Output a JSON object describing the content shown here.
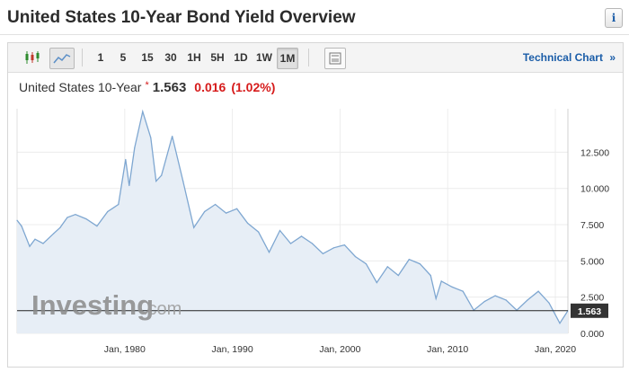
{
  "page": {
    "title": "United States 10-Year Bond Yield Overview",
    "info_glyph": "i"
  },
  "toolbar": {
    "candles_icon": "candlestick-chart-icon",
    "line_icon": "line-chart-icon",
    "timeframes": [
      "1",
      "5",
      "15",
      "30",
      "1H",
      "5H",
      "1D",
      "1W",
      "1M"
    ],
    "active_timeframe": "1M",
    "settings_icon": "chart-settings-icon",
    "technical_chart_label": "Technical Chart",
    "technical_chart_arrow": "»"
  },
  "quote": {
    "name": "United States 10-Year",
    "marker": "*",
    "last": "1.563",
    "change": "0.016",
    "change_pct": "(1.02%)"
  },
  "colors": {
    "line": "#7fa7d1",
    "area": "#e7eef6",
    "negative": "#d61b1b",
    "link": "#1b5da8",
    "price_badge": "#333333"
  },
  "watermark": {
    "brand": "Investing",
    "suffix": ".com"
  },
  "chart_data": {
    "type": "area",
    "title": "",
    "xlabel": "",
    "ylabel": "",
    "y_ticks": [
      "12.500",
      "10.000",
      "7.500",
      "5.000",
      "2.500",
      "0.000"
    ],
    "x_ticks": [
      "Jan, 1980",
      "Jan, 1990",
      "Jan, 2000",
      "Jan, 2010",
      "Jan, 2020"
    ],
    "ylim": [
      0,
      15.5
    ],
    "xlim": [
      "1970-01",
      "2021-03"
    ],
    "current_value": "1.563",
    "grid": true,
    "series": [
      {
        "x": [
          "1970-01",
          "1970-06",
          "1971-03",
          "1971-09",
          "1972-06",
          "1973-06",
          "1974-01",
          "1974-09",
          "1975-06",
          "1976-06",
          "1977-06",
          "1978-06",
          "1979-06",
          "1980-02",
          "1980-06",
          "1980-12",
          "1981-09",
          "1982-06",
          "1982-12",
          "1983-06",
          "1984-06",
          "1985-06",
          "1986-06",
          "1987-06",
          "1988-06",
          "1989-06",
          "1990-06",
          "1991-06",
          "1992-06",
          "1993-06",
          "1994-06",
          "1995-06",
          "1996-06",
          "1997-06",
          "1998-06",
          "1999-06",
          "2000-06",
          "2001-06",
          "2002-06",
          "2003-06",
          "2004-06",
          "2005-06",
          "2006-06",
          "2007-06",
          "2008-06",
          "2008-12",
          "2009-06",
          "2010-06",
          "2011-06",
          "2012-06",
          "2013-06",
          "2014-06",
          "2015-06",
          "2016-06",
          "2017-06",
          "2018-06",
          "2019-06",
          "2020-06",
          "2021-03"
        ],
        "values": [
          7.8,
          7.4,
          6.0,
          6.5,
          6.2,
          6.9,
          7.3,
          8.0,
          8.2,
          7.9,
          7.4,
          8.4,
          8.9,
          12.0,
          10.2,
          12.8,
          15.3,
          13.5,
          10.5,
          10.9,
          13.6,
          10.5,
          7.3,
          8.4,
          8.9,
          8.3,
          8.6,
          7.6,
          7.0,
          5.6,
          7.1,
          6.2,
          6.7,
          6.2,
          5.5,
          5.9,
          6.1,
          5.3,
          4.8,
          3.5,
          4.6,
          4.0,
          5.1,
          4.8,
          4.0,
          2.4,
          3.6,
          3.2,
          2.9,
          1.6,
          2.2,
          2.6,
          2.3,
          1.6,
          2.3,
          2.9,
          2.1,
          0.7,
          1.563
        ]
      }
    ]
  }
}
